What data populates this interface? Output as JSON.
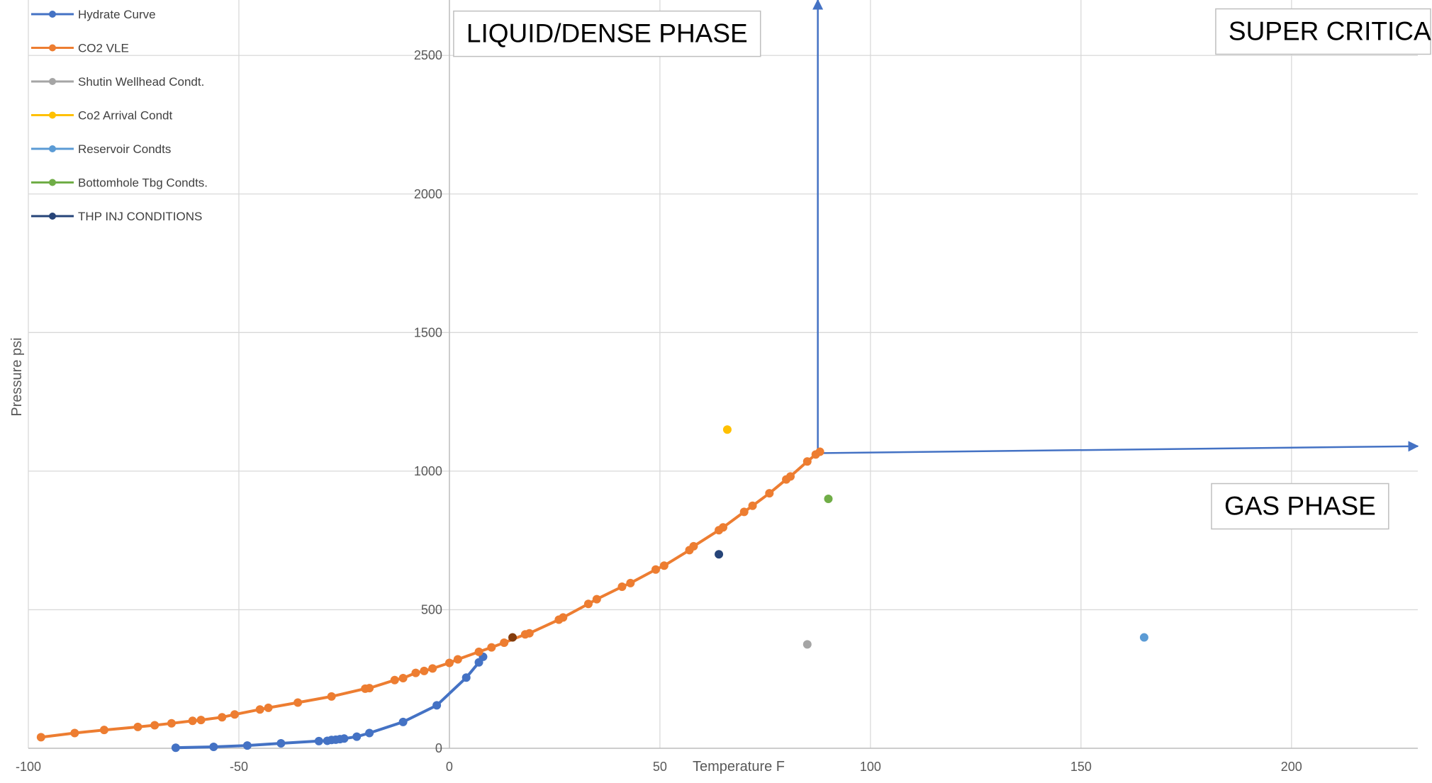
{
  "chart_data": {
    "type": "scatter",
    "title": "",
    "xlabel": "Temperature F",
    "ylabel": "Pressure psi",
    "xlim": [
      -100,
      230
    ],
    "ylim": [
      0,
      2700
    ],
    "x_ticks": [
      -100,
      -50,
      0,
      50,
      100,
      150,
      200
    ],
    "y_ticks": [
      0,
      500,
      1000,
      1500,
      2000,
      2500
    ],
    "grid": true,
    "legend_position": "top-left",
    "series": [
      {
        "name": "Hydrate Curve",
        "color": "#4472C4",
        "style": "line-markers",
        "points": [
          [
            -65,
            2
          ],
          [
            -56,
            5
          ],
          [
            -48,
            10
          ],
          [
            -40,
            18
          ],
          [
            -31,
            26
          ],
          [
            -29,
            27
          ],
          [
            -28,
            30
          ],
          [
            -27,
            31
          ],
          [
            -26,
            33
          ],
          [
            -25,
            35
          ],
          [
            -22,
            42
          ],
          [
            -19,
            55
          ],
          [
            -11,
            95
          ],
          [
            -3,
            155
          ],
          [
            4,
            255
          ],
          [
            7,
            310
          ],
          [
            8,
            330
          ]
        ]
      },
      {
        "name": "CO2 VLE",
        "color": "#ED7D31",
        "style": "line-markers",
        "points": [
          [
            -97,
            40
          ],
          [
            -89,
            55
          ],
          [
            -82,
            66
          ],
          [
            -74,
            77
          ],
          [
            -70,
            83
          ],
          [
            -66,
            90
          ],
          [
            -61,
            99
          ],
          [
            -59,
            102
          ],
          [
            -54,
            112
          ],
          [
            -51,
            122
          ],
          [
            -45,
            140
          ],
          [
            -43,
            146
          ],
          [
            -36,
            165
          ],
          [
            -28,
            187
          ],
          [
            -20,
            215
          ],
          [
            -19,
            217
          ],
          [
            -13,
            246
          ],
          [
            -11,
            253
          ],
          [
            -8,
            272
          ],
          [
            -6,
            279
          ],
          [
            -4,
            288
          ],
          [
            0,
            308
          ],
          [
            2,
            321
          ],
          [
            7,
            348
          ],
          [
            10,
            364
          ],
          [
            13,
            381
          ],
          [
            18,
            411
          ],
          [
            19,
            415
          ],
          [
            26,
            464
          ],
          [
            27,
            472
          ],
          [
            33,
            521
          ],
          [
            35,
            538
          ],
          [
            41,
            583
          ],
          [
            43,
            596
          ],
          [
            49,
            645
          ],
          [
            51,
            659
          ],
          [
            57,
            715
          ],
          [
            58,
            729
          ],
          [
            64,
            787
          ],
          [
            65,
            797
          ],
          [
            70,
            853
          ],
          [
            72,
            875
          ],
          [
            76,
            920
          ],
          [
            80,
            970
          ],
          [
            81,
            981
          ],
          [
            85,
            1035
          ],
          [
            87,
            1060
          ],
          [
            88,
            1070
          ]
        ]
      },
      {
        "name": "Shutin Wellhead Condt.",
        "color": "#A5A5A5",
        "style": "markers",
        "points": [
          [
            85,
            375
          ]
        ]
      },
      {
        "name": "Co2 Arrival Condt",
        "color": "#FFC000",
        "style": "markers",
        "points": [
          [
            66,
            1150
          ]
        ]
      },
      {
        "name": "Reservoir Condts",
        "color": "#5B9BD5",
        "style": "markers",
        "points": [
          [
            165,
            400
          ]
        ]
      },
      {
        "name": "Bottomhole Tbg Condts.",
        "color": "#70AD47",
        "style": "markers",
        "points": [
          [
            90,
            900
          ]
        ]
      },
      {
        "name": "THP INJ CONDITIONS",
        "color": "#264478",
        "style": "markers",
        "points": [
          [
            64,
            700
          ]
        ]
      }
    ],
    "extra_points": [
      {
        "color": "#843C0C",
        "x": 15,
        "y": 400
      }
    ],
    "phase_lines": {
      "color": "#4472C4",
      "vertical": {
        "x": 87.5,
        "y_from": 1065,
        "y_to": 2700
      },
      "horizontal": {
        "x_from": 87.5,
        "x_to": 230,
        "y_from": 1065,
        "y_to": 1090
      }
    },
    "annotations": [
      {
        "text": "LIQUID/DENSE PHASE",
        "anchor_x": 1,
        "anchor_y": 2660
      },
      {
        "text": "SUPER CRITICAL",
        "anchor_x": 182,
        "anchor_y": 2668
      },
      {
        "text": "GAS PHASE",
        "anchor_x": 181,
        "anchor_y": 955
      }
    ]
  }
}
